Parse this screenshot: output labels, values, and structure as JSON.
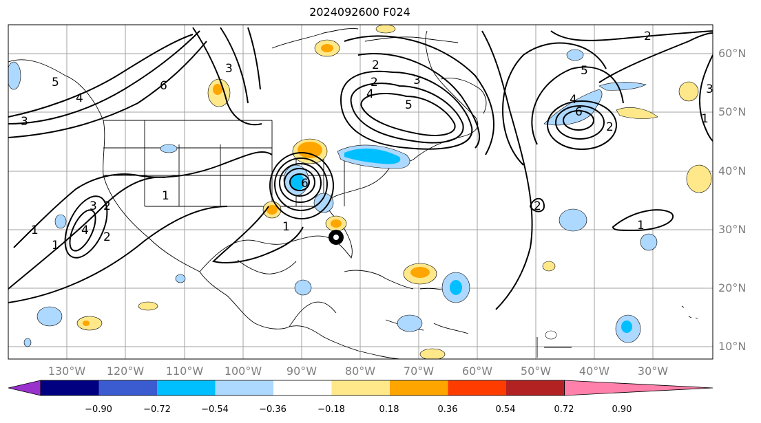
{
  "title": "2024092600 F024",
  "map": {
    "lon_labels": [
      "130°W",
      "120°W",
      "110°W",
      "100°W",
      "90°W",
      "80°W",
      "70°W",
      "60°W",
      "50°W",
      "40°W",
      "30°W"
    ],
    "lat_labels": [
      "60°N",
      "50°N",
      "40°N",
      "30°N",
      "20°N",
      "10°N"
    ],
    "lon_range": [
      -140,
      -20
    ],
    "lat_range": [
      8,
      65
    ],
    "storm_marker": "hurricane-center-marker"
  },
  "contour_labels": [
    "6",
    "5",
    "4",
    "3",
    "2",
    "1",
    "1",
    "1",
    "2",
    "3",
    "4",
    "3",
    "2",
    "1",
    "6",
    "5",
    "4",
    "3",
    "2",
    "2",
    "3",
    "4",
    "5",
    "6",
    "2",
    "1",
    "2",
    "1"
  ],
  "colorbar": {
    "tick_labels": [
      "−0.90",
      "−0.72",
      "−0.54",
      "−0.36",
      "−0.18",
      "0.18",
      "0.36",
      "0.54",
      "0.72",
      "0.90"
    ],
    "colors": [
      "#9932cc",
      "#000080",
      "#3b5bd1",
      "#00bfff",
      "#add8ff",
      "#ffffff",
      "#ffe88a",
      "#ffa500",
      "#ff3c00",
      "#b22222",
      "#ff80aa"
    ]
  }
}
